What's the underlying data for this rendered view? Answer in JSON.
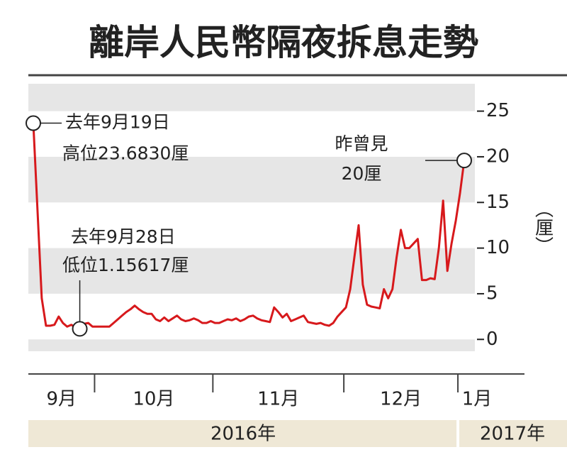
{
  "chart_data": {
    "type": "line",
    "title": "離岸人民幣隔夜拆息走勢",
    "y_label": "（厘）",
    "categories": [
      "9月",
      "9月",
      "9月",
      "9月",
      "9月",
      "9月",
      "9月",
      "9月",
      "9月",
      "9月",
      "9月",
      "9月",
      "9月",
      "9月",
      "9月",
      "10月",
      "10月",
      "10月",
      "10月",
      "10月",
      "10月",
      "10月",
      "10月",
      "10月",
      "10月",
      "10月",
      "10月",
      "10月",
      "10月",
      "10月",
      "10月",
      "10月",
      "10月",
      "10月",
      "10月",
      "10月",
      "10月",
      "10月",
      "10月",
      "10月",
      "10月",
      "10月",
      "10月",
      "11月",
      "11月",
      "11月",
      "11月",
      "11月",
      "11月",
      "11月",
      "11月",
      "11月",
      "11月",
      "11月",
      "11月",
      "11月",
      "11月",
      "11月",
      "11月",
      "11月",
      "11月",
      "11月",
      "11月",
      "11月",
      "11月",
      "11月",
      "11月",
      "11月",
      "11月",
      "11月",
      "11月",
      "11月",
      "11月",
      "11月",
      "12月",
      "12月",
      "12月",
      "12月",
      "12月",
      "12月",
      "12月",
      "12月",
      "12月",
      "12月",
      "12月",
      "12月",
      "12月",
      "12月",
      "12月",
      "12月",
      "12月",
      "12月",
      "12月",
      "12月",
      "12月",
      "12月",
      "12月",
      "12月",
      "12月",
      "12月",
      "12月",
      "1月",
      "1月"
    ],
    "years": [
      "2016年",
      "2017年"
    ],
    "series": [
      {
        "name": "離岸人民幣隔夜拆息",
        "color": "#d7191c",
        "values": [
          23.683,
          14,
          4.5,
          1.5,
          1.5,
          1.6,
          2.5,
          1.8,
          1.4,
          1.6,
          1.3,
          1.15617,
          1.7,
          1.8,
          1.4,
          1.4,
          1.4,
          1.4,
          1.4,
          1.8,
          2.2,
          2.6,
          3.0,
          3.3,
          3.7,
          3.3,
          3.0,
          2.8,
          2.8,
          2.2,
          2.0,
          2.4,
          2.0,
          2.3,
          2.6,
          2.2,
          2.0,
          2.1,
          2.3,
          2.1,
          1.8,
          1.8,
          2.0,
          1.8,
          1.8,
          2.0,
          2.2,
          2.1,
          2.3,
          2.0,
          2.2,
          2.5,
          2.6,
          2.3,
          2.1,
          2.0,
          1.9,
          3.5,
          3.0,
          2.4,
          2.8,
          2.0,
          2.2,
          2.4,
          2.6,
          1.9,
          1.8,
          1.7,
          1.8,
          1.6,
          1.5,
          1.8,
          2.5,
          3.0,
          3.5,
          5.5,
          9,
          12.5,
          6,
          3.8,
          3.6,
          3.5,
          3.4,
          5.5,
          4.5,
          5.5,
          9,
          12,
          10,
          10,
          10.5,
          11,
          6.5,
          6.5,
          6.7,
          6.6,
          10,
          15.2,
          7.5,
          10.5,
          13,
          16,
          19.6
        ]
      }
    ],
    "annotations": [
      {
        "point": 0,
        "lines": [
          "去年9月19日",
          "高位23.6830厘"
        ]
      },
      {
        "point": 11,
        "lines": [
          "去年9月28日",
          "低位1.15617厘"
        ]
      },
      {
        "point": 102,
        "lines": [
          "昨曾見",
          "20厘"
        ]
      }
    ],
    "ylim": [
      -1.3,
      28
    ],
    "yticks": [
      0,
      5,
      10,
      15,
      20,
      25
    ]
  }
}
